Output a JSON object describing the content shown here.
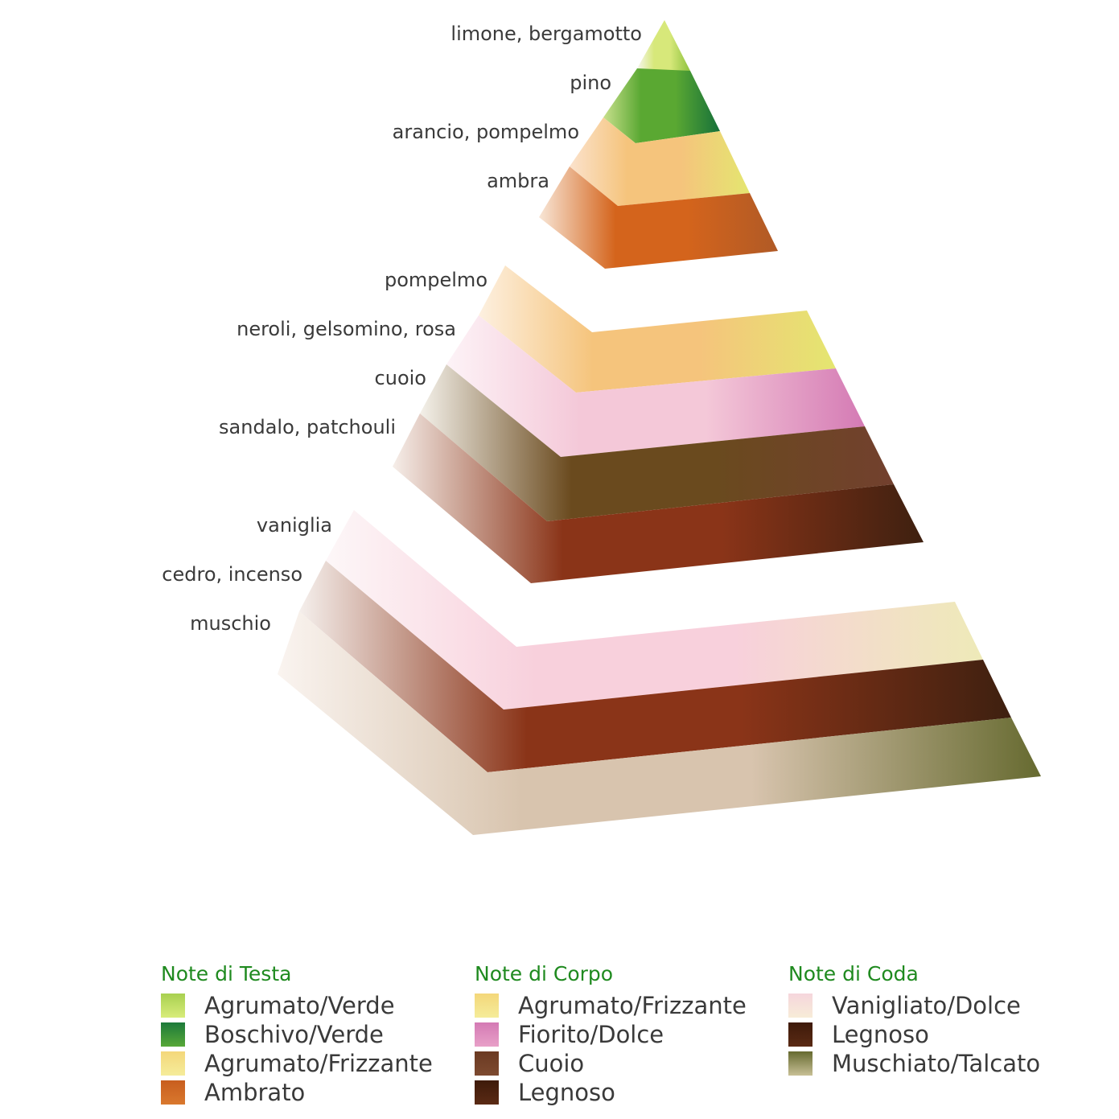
{
  "pyramid": {
    "tiers": [
      {
        "name": "Note di Testa",
        "layers": [
          {
            "label": "limone, bergamotto",
            "category": "Agrumato/Verde",
            "colors": [
              "#f6f6ee",
              "#d7e87a",
              "#8ec23e"
            ]
          },
          {
            "label": "pino",
            "category": "Boschivo/Verde",
            "colors": [
              "#c8e08c",
              "#5aa832",
              "#16703a"
            ]
          },
          {
            "label": "arancio, pompelmo",
            "category": "Agrumato/Frizzante",
            "colors": [
              "#fbe2cc",
              "#f5c47c",
              "#e4e670"
            ]
          },
          {
            "label": "ambra",
            "category": "Ambrato",
            "colors": [
              "#f8e6d6",
              "#d4641c",
              "#b05a26"
            ]
          }
        ]
      },
      {
        "name": "Note di Corpo",
        "layers": [
          {
            "label": "pompelmo",
            "category": "Agrumato/Frizzante",
            "colors": [
              "#fdf0e0",
              "#f5c47c",
              "#e4e670"
            ]
          },
          {
            "label": "neroli, gelsomino, rosa",
            "category": "Fiorito/Dolce",
            "colors": [
              "#fdf3f7",
              "#f4c8d8",
              "#d47ab4"
            ]
          },
          {
            "label": "cuoio",
            "category": "Cuoio",
            "colors": [
              "#f4f1ea",
              "#6a4a1e",
              "#72402e"
            ]
          },
          {
            "label": "sandalo, patchouli",
            "category": "Legnoso",
            "colors": [
              "#f6eee9",
              "#8a3418",
              "#3e2010"
            ]
          }
        ]
      },
      {
        "name": "Note di Coda",
        "layers": [
          {
            "label": "vaniglia",
            "category": "Vanigliato/Dolce",
            "colors": [
              "#fdf7f8",
              "#f8d0dc",
              "#eeeab8"
            ]
          },
          {
            "label": "cedro, incenso",
            "category": "Legnoso",
            "colors": [
              "#f5efec",
              "#8a3418",
              "#3e2010"
            ]
          },
          {
            "label": "muschio",
            "category": "Muschiato/Talcato",
            "colors": [
              "#faf4f0",
              "#d8c4ae",
              "#666a30"
            ]
          }
        ]
      }
    ]
  },
  "legend": {
    "columns": [
      {
        "title": "Note di Testa",
        "items": [
          {
            "label": "Agrumato/Verde",
            "colors": [
              "#a8d050",
              "#d8ec7a"
            ]
          },
          {
            "label": "Boschivo/Verde",
            "colors": [
              "#1c7a3a",
              "#58a838"
            ]
          },
          {
            "label": "Agrumato/Frizzante",
            "colors": [
              "#f4d77a",
              "#f5ec9a"
            ]
          },
          {
            "label": "Ambrato",
            "colors": [
              "#c85e1e",
              "#d9782e"
            ]
          }
        ]
      },
      {
        "title": "Note di Corpo",
        "items": [
          {
            "label": "Agrumato/Frizzante",
            "colors": [
              "#f4d77a",
              "#f5ec9a"
            ]
          },
          {
            "label": "Fiorito/Dolce",
            "colors": [
              "#d47ab4",
              "#e8a0c8"
            ]
          },
          {
            "label": "Cuoio",
            "colors": [
              "#6b3a22",
              "#7d4a30"
            ]
          },
          {
            "label": "Legnoso",
            "colors": [
              "#3e1a0a",
              "#5a2a14"
            ]
          }
        ]
      },
      {
        "title": "Note di Coda",
        "items": [
          {
            "label": "Vanigliato/Dolce",
            "colors": [
              "#f6d6dc",
              "#f7ecd8"
            ]
          },
          {
            "label": "Legnoso",
            "colors": [
              "#3e1a0a",
              "#5a2a14"
            ]
          },
          {
            "label": "Muschiato/Talcato",
            "colors": [
              "#666a30",
              "#c8c096"
            ]
          }
        ]
      }
    ]
  }
}
